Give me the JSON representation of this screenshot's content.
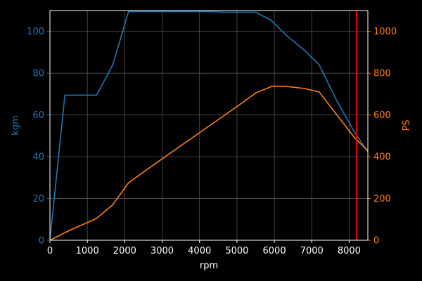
{
  "chart_data": {
    "type": "line",
    "title": "",
    "xlabel": "rpm",
    "ylabel_left": "kgm",
    "ylabel_right": "PS",
    "xlim": [
      0,
      8500
    ],
    "ylim_left": [
      0,
      110
    ],
    "ylim_right": [
      0,
      1100
    ],
    "x_ticks": [
      0,
      1000,
      2000,
      3000,
      4000,
      5000,
      6000,
      7000,
      8000
    ],
    "y_ticks_left": [
      0,
      20,
      40,
      60,
      80,
      100
    ],
    "y_ticks_right": [
      0,
      200,
      400,
      600,
      800,
      1000
    ],
    "grid": true,
    "series": [
      {
        "axis": "left",
        "color": "#1f77b4",
        "x": [
          0,
          400,
          1250,
          1680,
          2100,
          4300,
          4700,
          5500,
          5900,
          6300,
          6800,
          7200,
          7650,
          8150,
          8500
        ],
        "values": [
          0,
          69.5,
          69.5,
          84,
          109.5,
          109.5,
          109.2,
          109.2,
          105.5,
          98.5,
          91,
          84,
          67.5,
          51.5,
          42.5
        ]
      },
      {
        "axis": "right",
        "color": "#ff7f0e",
        "x": [
          0,
          500,
          1250,
          1680,
          2100,
          3000,
          4000,
          5000,
          5500,
          5950,
          6350,
          6800,
          7200,
          7650,
          8150,
          8500
        ],
        "values": [
          0,
          45,
          105,
          170,
          275,
          390,
          515,
          640,
          705,
          738,
          736,
          727,
          710,
          605,
          490,
          428
        ]
      }
    ],
    "annotations": [
      {
        "type": "vline",
        "x": 8200,
        "color": "#ff0000"
      }
    ],
    "frame_color": "#ffffff",
    "tick_color_x": "#ffffff",
    "tick_color_left": "#1f77b4",
    "tick_color_right": "#ff7f0e",
    "grid_color": "#555555"
  }
}
